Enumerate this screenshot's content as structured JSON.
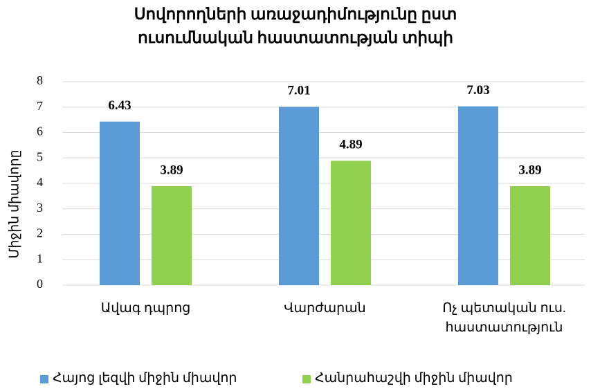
{
  "chart_data": {
    "type": "bar",
    "title": "Սովորողների առաջադիմությունը ըստ ուսումնական հաստատության տիպի",
    "y_label": "Միջին միավորը",
    "categories": [
      "Ավագ դպրոց",
      "Վարժարան",
      "Ոչ պետական ուս. հաստատություն"
    ],
    "series": [
      {
        "name": "Հայոց լեզվի միջին միավոր",
        "color": "#5b9bd5",
        "values": [
          6.43,
          7.01,
          7.03
        ]
      },
      {
        "name": "Հանրահաշվի միջին միավոր",
        "color": "#92d050",
        "values": [
          3.89,
          4.89,
          3.89
        ]
      }
    ],
    "ylim": [
      0,
      8
    ],
    "yticks": [
      0,
      1,
      2,
      3,
      4,
      5,
      6,
      7,
      8
    ],
    "grid": true,
    "legend": "bottom"
  }
}
